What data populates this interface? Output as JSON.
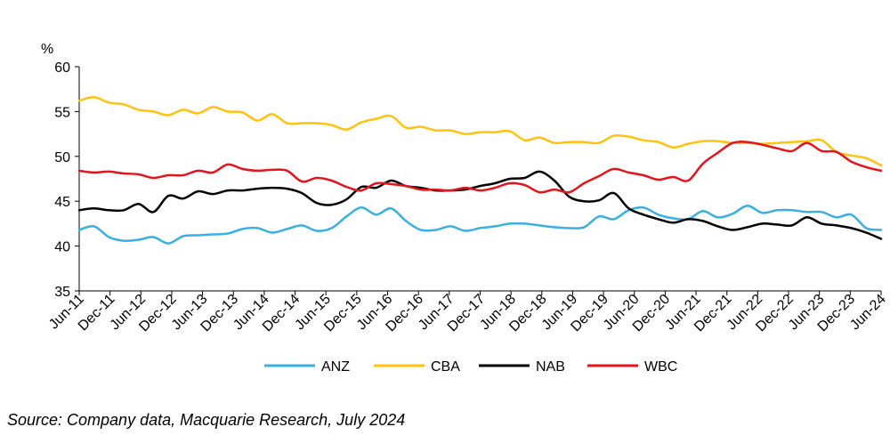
{
  "chart_data": {
    "type": "line",
    "ylabel": "%",
    "ylim": [
      35,
      60
    ],
    "yticks": [
      35,
      40,
      45,
      50,
      55,
      60
    ],
    "grid": false,
    "legend_position": "bottom",
    "x_labels": [
      "Jun-11",
      "Dec-11",
      "Jun-12",
      "Dec-12",
      "Jun-13",
      "Dec-13",
      "Jun-14",
      "Dec-14",
      "Jun-15",
      "Dec-15",
      "Jun-16",
      "Dec-16",
      "Jun-17",
      "Dec-17",
      "Jun-18",
      "Dec-18",
      "Jun-19",
      "Dec-19",
      "Jun-20",
      "Dec-20",
      "Jun-21",
      "Dec-21",
      "Jun-22",
      "Dec-22",
      "Jun-23",
      "Dec-23",
      "Jun-24"
    ],
    "series": [
      {
        "name": "ANZ",
        "color": "#3AB0E2",
        "values": [
          41.8,
          42.2,
          41.0,
          40.6,
          40.7,
          41.0,
          40.3,
          41.1,
          41.2,
          41.3,
          41.4,
          41.9,
          42.0,
          41.5,
          41.9,
          42.3,
          41.7,
          42.0,
          43.3,
          44.3,
          43.5,
          44.2,
          42.8,
          41.8,
          41.8,
          42.2,
          41.7,
          42.0,
          42.2,
          42.5,
          42.5,
          42.3,
          42.1,
          42.0,
          42.1,
          43.3,
          43.0,
          44.0,
          44.3,
          43.5,
          43.1,
          43.0,
          43.9,
          43.2,
          43.6,
          44.5,
          43.7,
          44.0,
          44.0,
          43.8,
          43.8,
          43.2,
          43.5,
          42.0,
          41.8
        ]
      },
      {
        "name": "CBA",
        "color": "#FFC20E",
        "values": [
          56.2,
          56.6,
          56.0,
          55.8,
          55.2,
          55.0,
          54.6,
          55.2,
          54.8,
          55.5,
          55.0,
          54.9,
          54.0,
          54.7,
          53.7,
          53.7,
          53.7,
          53.5,
          53.0,
          53.8,
          54.2,
          54.5,
          53.2,
          53.3,
          52.9,
          52.9,
          52.5,
          52.7,
          52.7,
          52.8,
          51.8,
          52.1,
          51.5,
          51.6,
          51.6,
          51.5,
          52.3,
          52.2,
          51.8,
          51.6,
          51.0,
          51.4,
          51.7,
          51.7,
          51.5,
          51.5,
          51.4,
          51.5,
          51.6,
          51.7,
          51.8,
          50.5,
          50.1,
          49.8,
          49.0
        ]
      },
      {
        "name": "NAB",
        "color": "#000000",
        "values": [
          44.0,
          44.2,
          44.0,
          44.0,
          44.7,
          43.8,
          45.6,
          45.3,
          46.1,
          45.8,
          46.2,
          46.2,
          46.4,
          46.5,
          46.4,
          45.9,
          44.8,
          44.6,
          45.2,
          46.6,
          46.5,
          47.3,
          46.7,
          46.5,
          46.2,
          46.2,
          46.3,
          46.7,
          47.0,
          47.5,
          47.6,
          48.3,
          47.3,
          45.5,
          45.0,
          45.1,
          45.9,
          44.2,
          43.5,
          43.0,
          42.6,
          43.0,
          42.8,
          42.2,
          41.8,
          42.1,
          42.5,
          42.4,
          42.3,
          43.2,
          42.5,
          42.3,
          42.0,
          41.5,
          40.8
        ]
      },
      {
        "name": "WBC",
        "color": "#E3141B",
        "values": [
          48.4,
          48.2,
          48.3,
          48.1,
          48.0,
          47.6,
          47.9,
          47.9,
          48.4,
          48.2,
          49.1,
          48.6,
          48.4,
          48.5,
          48.4,
          47.2,
          47.6,
          47.3,
          46.6,
          46.2,
          47.0,
          46.9,
          46.7,
          46.3,
          46.3,
          46.2,
          46.5,
          46.2,
          46.5,
          47.0,
          46.8,
          46.0,
          46.3,
          46.0,
          47.0,
          47.8,
          48.6,
          48.2,
          47.9,
          47.4,
          47.7,
          47.3,
          49.2,
          50.4,
          51.5,
          51.6,
          51.3,
          50.9,
          50.6,
          51.5,
          50.6,
          50.5,
          49.4,
          48.8,
          48.4
        ]
      }
    ]
  },
  "source_note": "Source: Company data, Macquarie Research, July 2024"
}
